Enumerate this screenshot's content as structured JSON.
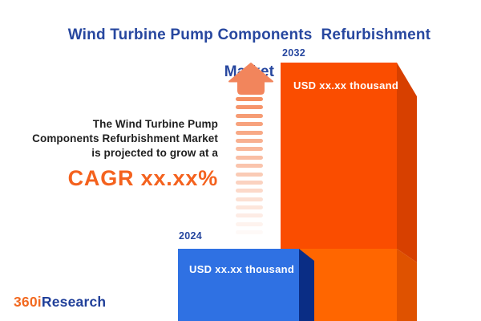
{
  "header": {
    "title_line1": "Wind Turbine Pump Components  Refurbishment",
    "title_line2": "Market"
  },
  "annotation": {
    "line1": "The Wind Turbine Pump",
    "line2": "Components Refurbishment Market",
    "line3": "is projected to grow at a",
    "cagr": "CAGR xx.xx%"
  },
  "chart_data": {
    "type": "bar",
    "title": "Wind Turbine Pump Components Refurbishment Market",
    "categories": [
      "2024",
      "2032"
    ],
    "series": [
      {
        "name": "Market size (USD thousand)",
        "values": [
          "xx.xx",
          "xx.xx"
        ]
      }
    ],
    "value_labels": [
      "USD xx.xx thousand",
      "USD xx.xx thousand"
    ],
    "bar_colors": [
      "#2F71E3",
      "#FA4D00"
    ],
    "annotation": "The Wind Turbine Pump Components Refurbishment Market is projected to grow at a CAGR xx.xx%",
    "legend_position": "none",
    "grid": false,
    "style": "3d-extruded-bars, values masked as xx.xx placeholders"
  },
  "bars": [
    {
      "year": "2024",
      "value_label": "USD xx.xx thousand",
      "face_color": "#2F71E3",
      "side_color": "#0A2D85"
    },
    {
      "year": "2032",
      "value_label": "USD xx.xx thousand",
      "face_color": "#FA4D00",
      "side_color": "#D74000"
    }
  ],
  "logo": {
    "prefix": "360i",
    "suffix": "Research"
  },
  "colors": {
    "title": "#27479F",
    "cagr_orange": "#F4621E",
    "arrow_salmon": "#F2855C",
    "orange_face_top": "#FA4D00",
    "orange_face_bottom": "#FF6600",
    "orange_side_top": "#D74000",
    "orange_side_bottom": "#DF5200",
    "blue_face": "#2F71E3",
    "blue_side": "#0A2D85"
  }
}
